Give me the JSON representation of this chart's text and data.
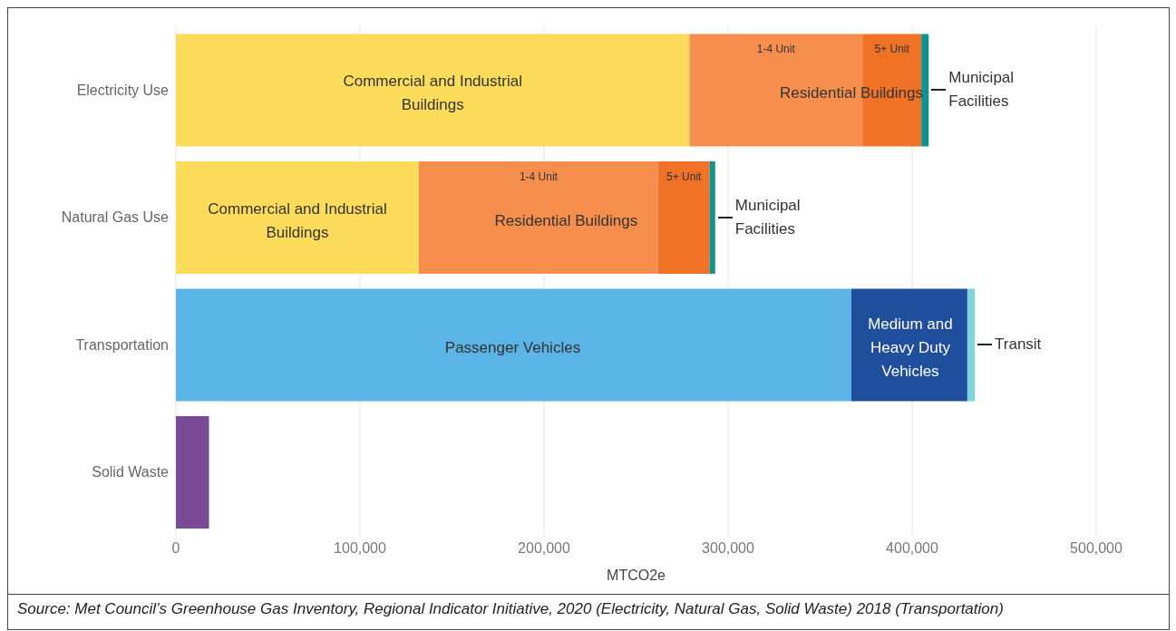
{
  "chart_data": {
    "type": "bar",
    "orientation": "horizontal",
    "stacked": true,
    "xlabel": "MTCO2e",
    "categories": [
      "Electricity Use",
      "Natural Gas Use",
      "Transportation",
      "Solid Waste"
    ],
    "series": [
      {
        "colors": [
          "#fddc5c",
          "#fddc5c",
          "#5ab4e5",
          "#7b4a97"
        ],
        "values": [
          279000,
          132000,
          367000,
          18000
        ]
      },
      {
        "colors": [
          "#f68f4e",
          "#f68f4e",
          "#1f4e9c",
          null
        ],
        "values": [
          94000,
          130000,
          63000,
          null
        ],
        "value_labels": [
          "1-4 Unit",
          "1-4 Unit",
          null,
          null
        ]
      },
      {
        "colors": [
          "#f07227",
          "#f07227",
          "#7fd3df",
          null
        ],
        "values": [
          32000,
          28000,
          4000,
          null
        ],
        "value_labels": [
          "5+ Unit",
          "5+ Unit",
          "Transit",
          null
        ]
      },
      {
        "colors": [
          "#12928f",
          "#12928f",
          null,
          null
        ],
        "values": [
          4000,
          3000,
          null,
          null
        ],
        "value_labels": [
          "Municipal Facilities",
          "Municipal Facilities",
          null,
          null
        ]
      }
    ],
    "xlim": [
      0,
      500000
    ],
    "xticks": [
      {
        "value": 0,
        "label": "0"
      },
      {
        "value": 100000,
        "label": "100,000"
      },
      {
        "value": 200000,
        "label": "200,000"
      },
      {
        "value": 300000,
        "label": "300,000"
      },
      {
        "value": 400000,
        "label": "400,000"
      },
      {
        "value": 500000,
        "label": "500,000"
      }
    ],
    "grid": "x",
    "annotations": [
      {
        "text": "Commercial and Industrial Buildings",
        "x": 139500,
        "y": "Electricity Use"
      },
      {
        "text": "Residential Buildings",
        "x": 367000,
        "y": "Electricity Use"
      },
      {
        "text": "Commercial and Industrial Buildings",
        "x": 66000,
        "y": "Natural Gas Use"
      },
      {
        "text": "Residential Buildings",
        "x": 212000,
        "y": "Natural Gas Use"
      },
      {
        "text": "Passenger Vehicles",
        "x": 183000,
        "y": "Transportation"
      },
      {
        "text": "Medium and Heavy Duty Vehicles",
        "x": 399000,
        "y": "Transportation"
      },
      "Source: Met Council’s Greenhouse Gas Inventory, Regional Indicator Initiative, 2020 (Electricity, Natural Gas, Solid Waste) 2018 (Transportation)"
    ]
  }
}
